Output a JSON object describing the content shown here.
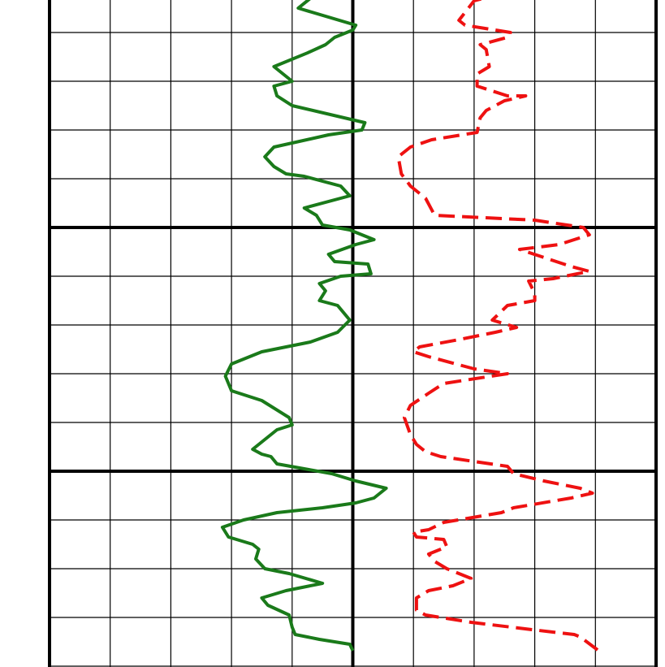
{
  "chart_data": {
    "type": "line",
    "title": "",
    "xlabel": "",
    "ylabel": "",
    "orientation": "vertical-log-track",
    "grid": true,
    "x_columns": 10,
    "y_rows": 14,
    "xlim": [
      0,
      10
    ],
    "ylim": [
      0,
      13.68
    ],
    "series": [
      {
        "style": "solid",
        "color": "#1a7a1a",
        "points": [
          [
            3.45,
            0.0
          ],
          [
            4.2,
            0.12
          ],
          [
            4.35,
            0.25
          ],
          [
            4.1,
            0.5
          ],
          [
            5.05,
            0.85
          ],
          [
            5.0,
            0.95
          ],
          [
            4.7,
            1.1
          ],
          [
            4.55,
            1.25
          ],
          [
            4.25,
            1.42
          ],
          [
            3.7,
            1.7
          ],
          [
            4.0,
            2.0
          ],
          [
            3.7,
            2.1
          ],
          [
            3.75,
            2.3
          ],
          [
            4.0,
            2.5
          ],
          [
            5.2,
            2.85
          ],
          [
            5.15,
            3.0
          ],
          [
            4.6,
            3.1
          ],
          [
            3.7,
            3.35
          ],
          [
            3.55,
            3.55
          ],
          [
            3.7,
            3.75
          ],
          [
            3.9,
            3.9
          ],
          [
            4.2,
            3.95
          ],
          [
            4.8,
            4.15
          ],
          [
            4.95,
            4.35
          ],
          [
            4.2,
            4.6
          ],
          [
            4.4,
            4.75
          ],
          [
            4.5,
            4.95
          ],
          [
            4.95,
            5.05
          ],
          [
            5.35,
            5.25
          ],
          [
            5.05,
            5.35
          ],
          [
            4.6,
            5.55
          ],
          [
            4.7,
            5.7
          ],
          [
            5.25,
            5.75
          ],
          [
            5.3,
            5.95
          ],
          [
            4.8,
            6.0
          ],
          [
            4.45,
            6.15
          ],
          [
            4.55,
            6.3
          ],
          [
            4.45,
            6.5
          ],
          [
            4.75,
            6.6
          ],
          [
            4.95,
            6.9
          ],
          [
            4.75,
            7.15
          ],
          [
            4.3,
            7.35
          ],
          [
            3.5,
            7.55
          ],
          [
            3.0,
            7.8
          ],
          [
            2.9,
            8.05
          ],
          [
            3.0,
            8.35
          ],
          [
            3.5,
            8.55
          ],
          [
            3.95,
            8.9
          ],
          [
            4.0,
            9.05
          ],
          [
            3.75,
            9.15
          ],
          [
            3.5,
            9.4
          ],
          [
            3.35,
            9.55
          ],
          [
            3.5,
            9.65
          ],
          [
            3.65,
            9.7
          ],
          [
            3.75,
            9.85
          ],
          [
            4.65,
            10.05
          ],
          [
            5.05,
            10.2
          ],
          [
            5.55,
            10.35
          ],
          [
            5.35,
            10.55
          ],
          [
            5.05,
            10.65
          ],
          [
            4.5,
            10.75
          ],
          [
            3.75,
            10.85
          ],
          [
            3.2,
            11.0
          ],
          [
            2.85,
            11.15
          ],
          [
            2.95,
            11.35
          ],
          [
            3.35,
            11.5
          ],
          [
            3.45,
            11.6
          ],
          [
            3.4,
            11.8
          ],
          [
            3.55,
            12.0
          ],
          [
            3.95,
            12.1
          ],
          [
            4.5,
            12.3
          ],
          [
            3.9,
            12.45
          ],
          [
            3.5,
            12.6
          ],
          [
            3.6,
            12.75
          ],
          [
            3.95,
            12.95
          ],
          [
            4.0,
            13.2
          ],
          [
            4.05,
            13.35
          ],
          [
            4.45,
            13.45
          ],
          [
            4.95,
            13.55
          ],
          [
            5.0,
            13.68
          ]
        ]
      },
      {
        "style": "dashed",
        "color": "#ee1111",
        "points": [
          [
            6.75,
            0.0
          ],
          [
            7.3,
            0.25
          ],
          [
            7.0,
            0.35
          ],
          [
            6.75,
            0.75
          ],
          [
            6.85,
            0.85
          ],
          [
            7.6,
            1.0
          ],
          [
            7.55,
            1.1
          ],
          [
            7.1,
            1.25
          ],
          [
            7.2,
            1.35
          ],
          [
            7.25,
            1.7
          ],
          [
            7.05,
            1.85
          ],
          [
            7.05,
            2.1
          ],
          [
            7.55,
            2.3
          ],
          [
            7.85,
            2.3
          ],
          [
            7.5,
            2.4
          ],
          [
            7.2,
            2.6
          ],
          [
            7.1,
            2.75
          ],
          [
            7.05,
            3.05
          ],
          [
            6.8,
            3.1
          ],
          [
            6.3,
            3.2
          ],
          [
            5.95,
            3.35
          ],
          [
            5.75,
            3.55
          ],
          [
            5.8,
            3.9
          ],
          [
            5.95,
            4.15
          ],
          [
            6.05,
            4.25
          ],
          [
            6.2,
            4.4
          ],
          [
            6.35,
            4.75
          ],
          [
            8.0,
            4.85
          ],
          [
            8.8,
            5.0
          ],
          [
            8.9,
            5.15
          ],
          [
            8.4,
            5.35
          ],
          [
            7.75,
            5.45
          ],
          [
            8.6,
            5.8
          ],
          [
            8.9,
            5.9
          ],
          [
            8.3,
            6.05
          ],
          [
            7.9,
            6.1
          ],
          [
            8.0,
            6.35
          ],
          [
            8.0,
            6.5
          ],
          [
            7.55,
            6.6
          ],
          [
            7.3,
            6.9
          ],
          [
            7.7,
            7.05
          ],
          [
            7.35,
            7.15
          ],
          [
            6.75,
            7.3
          ],
          [
            6.1,
            7.45
          ],
          [
            6.0,
            7.55
          ],
          [
            6.25,
            7.65
          ],
          [
            7.0,
            7.9
          ],
          [
            7.55,
            8.0
          ],
          [
            6.5,
            8.2
          ],
          [
            6.25,
            8.4
          ],
          [
            5.95,
            8.65
          ],
          [
            5.85,
            8.9
          ],
          [
            5.95,
            9.25
          ],
          [
            6.05,
            9.45
          ],
          [
            6.2,
            9.6
          ],
          [
            6.45,
            9.7
          ],
          [
            7.0,
            9.8
          ],
          [
            7.55,
            9.9
          ],
          [
            7.65,
            10.05
          ],
          [
            8.15,
            10.2
          ],
          [
            8.75,
            10.35
          ],
          [
            8.95,
            10.45
          ],
          [
            8.6,
            10.55
          ],
          [
            7.65,
            10.75
          ],
          [
            7.45,
            10.85
          ],
          [
            6.5,
            11.05
          ],
          [
            6.25,
            11.2
          ],
          [
            6.0,
            11.25
          ],
          [
            6.05,
            11.35
          ],
          [
            6.5,
            11.4
          ],
          [
            6.55,
            11.55
          ],
          [
            6.25,
            11.7
          ],
          [
            6.35,
            11.85
          ],
          [
            6.55,
            12.0
          ],
          [
            6.65,
            12.05
          ],
          [
            6.95,
            12.2
          ],
          [
            6.65,
            12.35
          ],
          [
            6.25,
            12.45
          ],
          [
            6.05,
            12.6
          ],
          [
            6.05,
            12.85
          ],
          [
            6.2,
            12.95
          ],
          [
            6.95,
            13.1
          ],
          [
            7.95,
            13.25
          ],
          [
            8.65,
            13.35
          ],
          [
            8.75,
            13.4
          ],
          [
            9.05,
            13.68
          ]
        ]
      }
    ]
  }
}
